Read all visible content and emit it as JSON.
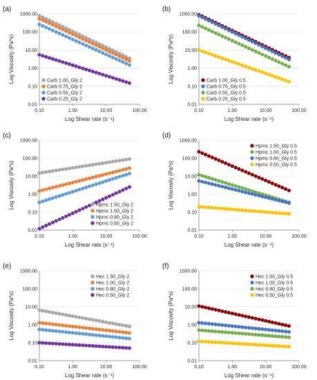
{
  "chart_data": [
    {
      "type": "scatter",
      "panel_label": "(a)",
      "xlabel": "Log Shear rate (s⁻¹)",
      "ylabel": "Log Viscosity (Pa*s)",
      "x_scale": "log",
      "y_scale": "log",
      "xlim": [
        0.1,
        100
      ],
      "ylim": [
        0.01,
        1000
      ],
      "xticks": [
        "0.10",
        "1.00",
        "10.00",
        "100.00"
      ],
      "yticks": [
        "0.01",
        "0.10",
        "1.00",
        "10.00",
        "100.00",
        "1000.00"
      ],
      "legend_position": "lower-left",
      "x_range": [
        0.1,
        50
      ],
      "series": [
        {
          "name": "Carb 1.00_Gly 2",
          "color": "#a6a6a6",
          "y_start": 800,
          "y_end": 3.5
        },
        {
          "name": "Carb 0.75_Gly 2",
          "color": "#ed7d31",
          "y_start": 550,
          "y_end": 2.5
        },
        {
          "name": "Carb 0.50_Gly 2",
          "color": "#5b9bd5",
          "y_start": 260,
          "y_end": 1.5
        },
        {
          "name": "Carb 0.25_Gly 2",
          "color": "#7030a0",
          "y_start": 5.5,
          "y_end": 0.15
        }
      ]
    },
    {
      "type": "scatter",
      "panel_label": "(b)",
      "xlabel": "Log Shear rate (s⁻¹)",
      "ylabel": "Log Viscosity (Pa*s)",
      "x_scale": "log",
      "y_scale": "log",
      "xlim": [
        0.1,
        100
      ],
      "ylim": [
        0.01,
        1000
      ],
      "xticks": [
        "0.10",
        "1.00",
        "10.00",
        "100.00"
      ],
      "yticks": [
        "0.01",
        "0.10",
        "1.00",
        "10.00",
        "100.00",
        "1000.00"
      ],
      "legend_position": "lower-left",
      "x_range": [
        0.1,
        50
      ],
      "series": [
        {
          "name": "Carb 1.00_Gly 0.5",
          "color": "#8b0000",
          "y_start": 900,
          "y_end": 3.8
        },
        {
          "name": "Carb 0.75_Gly 0.5",
          "color": "#4472c4",
          "y_start": 780,
          "y_end": 3.0
        },
        {
          "name": "Carb 0.50_Gly 0.5",
          "color": "#70ad47",
          "y_start": 230,
          "y_end": 1.2
        },
        {
          "name": "Carb 0.25_Gly 0.5",
          "color": "#ffc000",
          "y_start": 10,
          "y_end": 0.18
        }
      ]
    },
    {
      "type": "scatter",
      "panel_label": "(c)",
      "xlabel": "Log Shear rate (s⁻¹)",
      "ylabel": "Log Viscosity (Pa*s)",
      "x_scale": "log",
      "y_scale": "log",
      "xlim": [
        0.1,
        100
      ],
      "ylim": [
        0.01,
        1000
      ],
      "xticks": [
        "0.10",
        "1.00",
        "10.00",
        "100.00"
      ],
      "yticks": [
        "0.01",
        "0.10",
        "1.00",
        "10.00",
        "100.00",
        "1000.00"
      ],
      "legend_position": "lower-right",
      "x_range": [
        0.1,
        50
      ],
      "series": [
        {
          "name": "Hpmc 1.50_Gly 2",
          "color": "#a6a6a6",
          "y_start": 15,
          "y_end": 90
        },
        {
          "name": "Hpmc 1.00_Gly 2",
          "color": "#ed7d31",
          "y_start": 1.5,
          "y_end": 28
        },
        {
          "name": "Hpmc 0.80_Gly 2",
          "color": "#5b9bd5",
          "y_start": 0.35,
          "y_end": 14
        },
        {
          "name": "Hpmc 0.50_Gly 2",
          "color": "#7030a0",
          "y_start": 0.012,
          "y_end": 2.5
        }
      ]
    },
    {
      "type": "scatter",
      "panel_label": "(d)",
      "xlabel": "Log Shear rate (s⁻¹)",
      "ylabel": "Log Viscosity (Pa*s)",
      "x_scale": "log",
      "y_scale": "log",
      "xlim": [
        0.1,
        100
      ],
      "ylim": [
        0.01,
        1000
      ],
      "xticks": [
        "0.10",
        "1.00",
        "10.00",
        "100.00"
      ],
      "yticks": [
        "0.01",
        "0.10",
        "1.00",
        "10.00",
        "100.00",
        "1000.00"
      ],
      "legend_position": "top-right",
      "x_range": [
        0.1,
        50
      ],
      "series": [
        {
          "name": "Hpmc 1.50_Gly 0.5",
          "color": "#8b0000",
          "y_start": 230,
          "y_end": 1.6
        },
        {
          "name": "Hpmc 1.00_Gly 0.5",
          "color": "#70ad47",
          "y_start": 12,
          "y_end": 0.35
        },
        {
          "name": "Hpmc 0.80_Gly 0.5",
          "color": "#4472c4",
          "y_start": 5.5,
          "y_end": 0.32
        },
        {
          "name": "Hpmc 0.50_Gly 0.5",
          "color": "#ffc000",
          "y_start": 0.2,
          "y_end": 0.08
        }
      ]
    },
    {
      "type": "scatter",
      "panel_label": "(e)",
      "xlabel": "Log Shear rate (s⁻¹)",
      "ylabel": "Log Viscosity (Pa*s)",
      "x_scale": "log",
      "y_scale": "log",
      "xlim": [
        0.1,
        100
      ],
      "ylim": [
        0.01,
        1000
      ],
      "xticks": [
        "0.10",
        "1.00",
        "10.00",
        "100.00"
      ],
      "yticks": [
        "0.01",
        "0.10",
        "1.00",
        "10.00",
        "100.00",
        "1000.00"
      ],
      "legend_position": "top-right",
      "x_range": [
        0.1,
        50
      ],
      "series": [
        {
          "name": "Hec 1.50_Gly 2",
          "color": "#a6a6a6",
          "y_start": 6.5,
          "y_end": 0.8
        },
        {
          "name": "Hec 1.00_Gly 2",
          "color": "#ed7d31",
          "y_start": 1.3,
          "y_end": 0.35
        },
        {
          "name": "Hec 0.80_Gly 2",
          "color": "#5b9bd5",
          "y_start": 0.55,
          "y_end": 0.17
        },
        {
          "name": "Hec 0.50_Gly 2",
          "color": "#7030a0",
          "y_start": 0.1,
          "y_end": 0.05
        }
      ]
    },
    {
      "type": "scatter",
      "panel_label": "(f)",
      "xlabel": "Log Shear rate (s⁻¹)",
      "ylabel": "Log Viscosity (Pa*s)",
      "x_scale": "log",
      "y_scale": "log",
      "xlim": [
        0.1,
        100
      ],
      "ylim": [
        0.01,
        1000
      ],
      "xticks": [
        "0.10",
        "1.00",
        "10.00",
        "100.00"
      ],
      "yticks": [
        "0.01",
        "0.10",
        "1.00",
        "10.00",
        "100.00",
        "1000.00"
      ],
      "legend_position": "top-right",
      "x_range": [
        0.1,
        50
      ],
      "series": [
        {
          "name": "Hec 1.50_Gly 0.5",
          "color": "#8b0000",
          "y_start": 11,
          "y_end": 0.85
        },
        {
          "name": "Hec 1.00_Gly 0.5",
          "color": "#4472c4",
          "y_start": 1.3,
          "y_end": 0.4
        },
        {
          "name": "Hec 0.80_Gly 0.5",
          "color": "#70ad47",
          "y_start": 0.5,
          "y_end": 0.2
        },
        {
          "name": "Hec 0.50_Gly 0.5",
          "color": "#ffc000",
          "y_start": 0.12,
          "y_end": 0.06
        }
      ]
    }
  ]
}
